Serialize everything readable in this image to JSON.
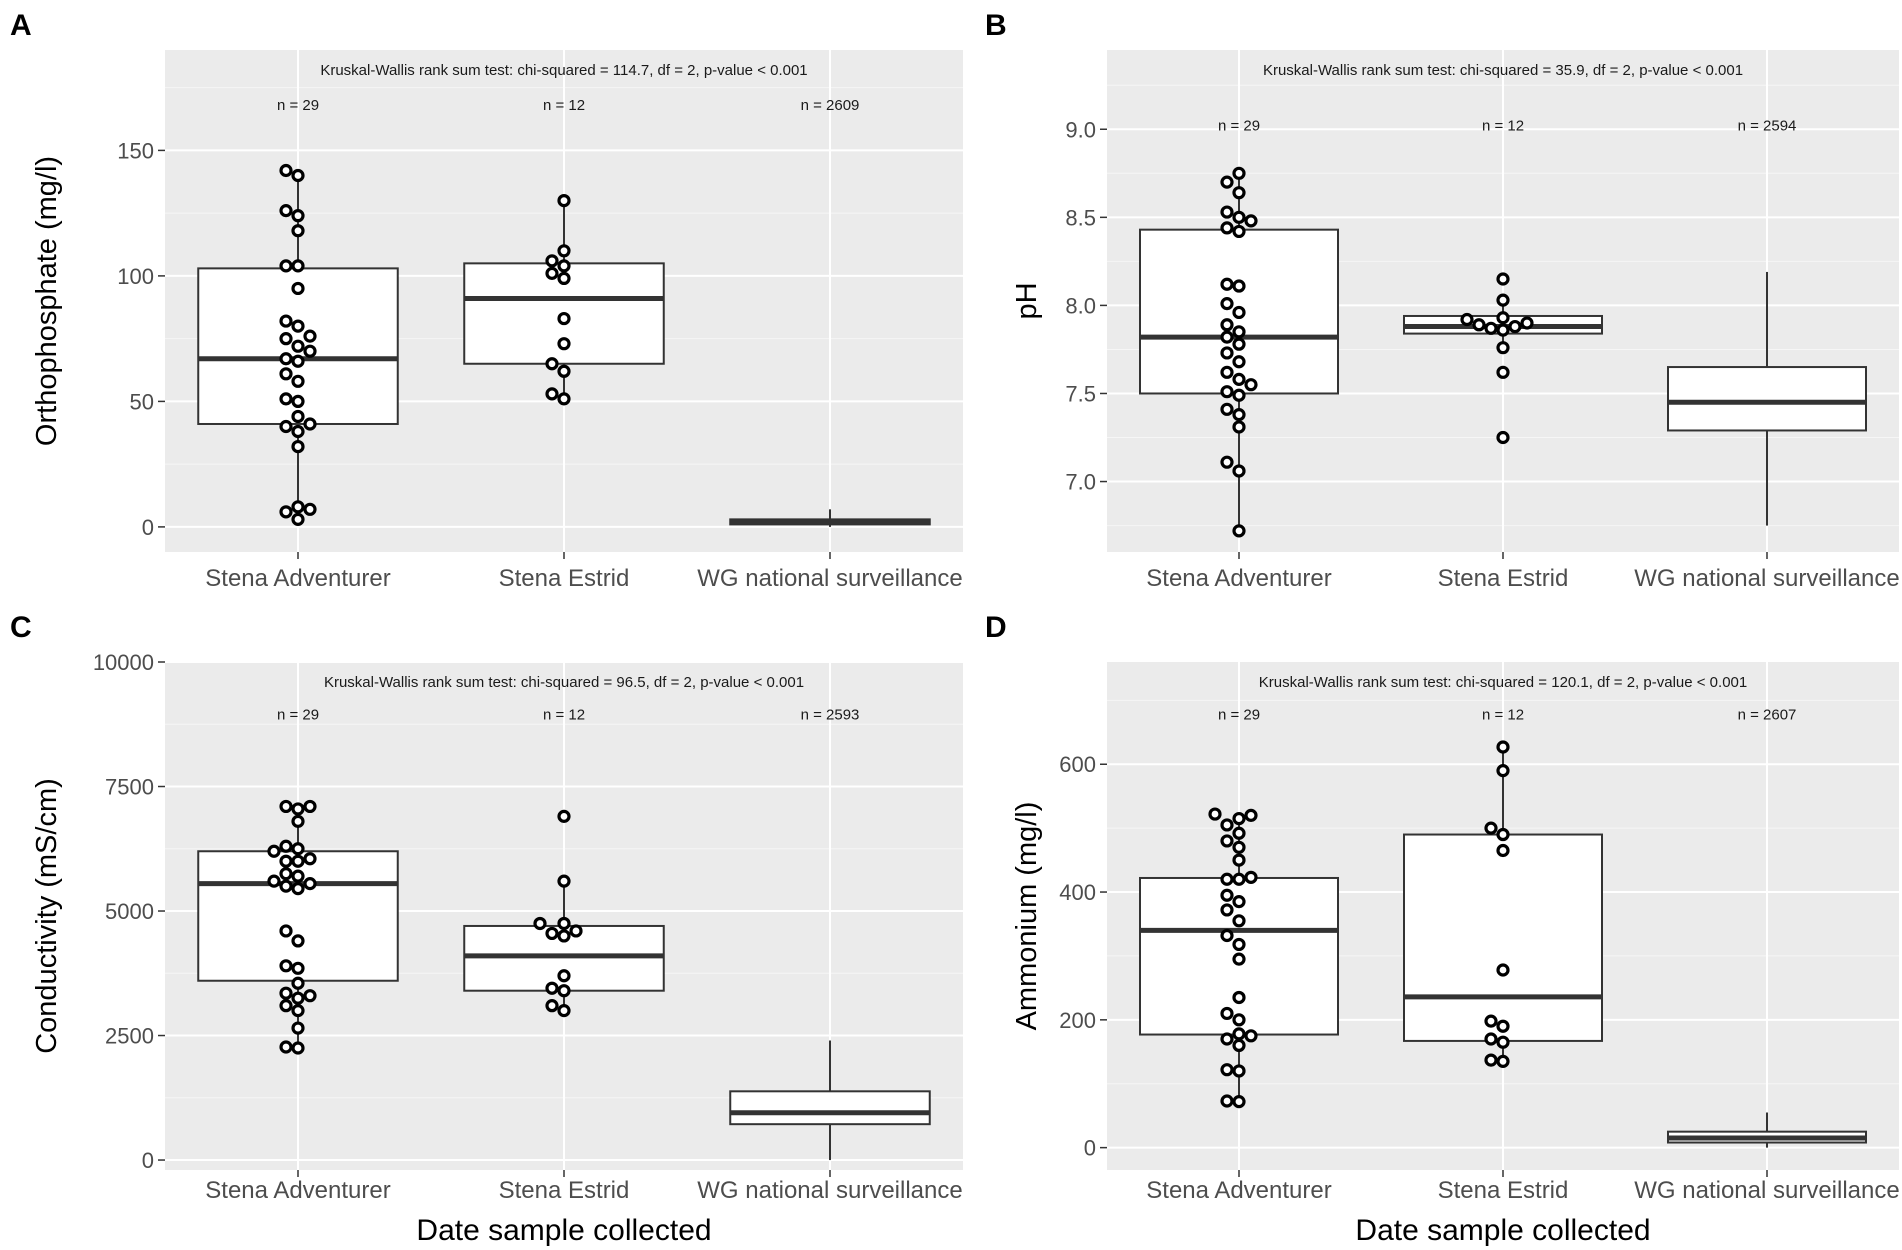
{
  "chart_data": [
    {
      "panel": "A",
      "type": "box",
      "ylabel": "Orthophosphate (mg/l)",
      "xlabel": "",
      "ylim": [
        -10,
        190
      ],
      "yticks": [
        0,
        50,
        100,
        150
      ],
      "categories": [
        "Stena Adventurer",
        "Stena Estrid",
        "WG national surveillance"
      ],
      "annotation": "Kruskal-Wallis rank sum test: chi-squared = 114.7, df = 2, p-value < 0.001",
      "n_labels": [
        "n = 29",
        "n = 12",
        "n = 2609"
      ],
      "n_label_y": 168,
      "boxes": [
        {
          "q1": 41,
          "median": 67,
          "q3": 103,
          "whisker_low": 3,
          "whisker_high": 140
        },
        {
          "q1": 65,
          "median": 91,
          "q3": 105,
          "whisker_low": 51,
          "whisker_high": 130
        },
        {
          "q1": 1,
          "median": 2,
          "q3": 3,
          "whisker_low": 0,
          "whisker_high": 7
        }
      ],
      "points": [
        [
          3,
          6,
          7,
          8,
          32,
          38,
          40,
          41,
          44,
          50,
          51,
          58,
          61,
          66,
          67,
          70,
          72,
          75,
          76,
          80,
          82,
          95,
          104,
          104,
          118,
          124,
          126,
          140,
          142
        ],
        [
          51,
          53,
          62,
          65,
          73,
          83,
          99,
          101,
          104,
          106,
          110,
          130
        ],
        []
      ]
    },
    {
      "panel": "B",
      "type": "box",
      "ylabel": "pH",
      "xlabel": "",
      "ylim": [
        6.6,
        9.45
      ],
      "yticks": [
        7.0,
        7.5,
        8.0,
        8.5,
        9.0
      ],
      "ytick_labels": [
        "7.0",
        "7.5",
        "8.0",
        "8.5",
        "9.0"
      ],
      "categories": [
        "Stena Adventurer",
        "Stena Estrid",
        "WG national surveillance"
      ],
      "annotation": "Kruskal-Wallis rank sum test: chi-squared = 35.9, df = 2, p-value < 0.001",
      "n_labels": [
        "n = 29",
        "n = 12",
        "n = 2594"
      ],
      "n_label_y": 9.02,
      "boxes": [
        {
          "q1": 7.5,
          "median": 7.82,
          "q3": 8.43,
          "whisker_low": 6.72,
          "whisker_high": 8.75
        },
        {
          "q1": 7.84,
          "median": 7.88,
          "q3": 7.94,
          "whisker_low": 7.75,
          "whisker_high": 8.03
        },
        {
          "q1": 7.29,
          "median": 7.45,
          "q3": 7.65,
          "whisker_low": 6.75,
          "whisker_high": 8.19
        }
      ],
      "points": [
        [
          6.72,
          7.06,
          7.11,
          7.31,
          7.38,
          7.41,
          7.49,
          7.51,
          7.55,
          7.58,
          7.62,
          7.68,
          7.73,
          7.78,
          7.82,
          7.85,
          7.89,
          7.96,
          8.01,
          8.11,
          8.12,
          8.42,
          8.44,
          8.48,
          8.5,
          8.53,
          8.64,
          8.7,
          8.75
        ],
        [
          7.25,
          7.62,
          7.76,
          7.86,
          7.87,
          7.88,
          7.89,
          7.9,
          7.92,
          7.93,
          8.03,
          8.15
        ],
        []
      ]
    },
    {
      "panel": "C",
      "type": "box",
      "ylabel": "Conductivity (mS/cm)",
      "xlabel": "Date sample collected",
      "ylim": [
        -200,
        10000
      ],
      "yticks": [
        0,
        2500,
        5000,
        7500,
        10000
      ],
      "categories": [
        "Stena Adventurer",
        "Stena Estrid",
        "WG national surveillance"
      ],
      "annotation": "Kruskal-Wallis rank sum test: chi-squared = 96.5, df = 2, p-value < 0.001",
      "n_labels": [
        "n = 29",
        "n = 12",
        "n = 2593"
      ],
      "n_label_y": 8950,
      "boxes": [
        {
          "q1": 3600,
          "median": 5550,
          "q3": 6200,
          "whisker_low": 2250,
          "whisker_high": 7050
        },
        {
          "q1": 3400,
          "median": 4100,
          "q3": 4700,
          "whisker_low": 3000,
          "whisker_high": 5600
        },
        {
          "q1": 720,
          "median": 950,
          "q3": 1380,
          "whisker_low": 0,
          "whisker_high": 2400
        }
      ],
      "points": [
        [
          2250,
          2270,
          2650,
          3000,
          3100,
          3250,
          3300,
          3350,
          3550,
          3850,
          3900,
          4400,
          4600,
          5450,
          5500,
          5550,
          5600,
          5700,
          5750,
          6000,
          6000,
          6050,
          6200,
          6250,
          6300,
          6800,
          7050,
          7100,
          7100
        ],
        [
          3000,
          3100,
          3400,
          3450,
          3700,
          4500,
          4550,
          4600,
          4750,
          4750,
          5600,
          6900
        ],
        []
      ]
    },
    {
      "panel": "D",
      "type": "box",
      "ylabel": "Ammonium (mg/l)",
      "xlabel": "Date sample collected",
      "ylim": [
        -35,
        760
      ],
      "yticks": [
        0,
        200,
        400,
        600
      ],
      "categories": [
        "Stena Adventurer",
        "Stena Estrid",
        "WG national surveillance"
      ],
      "annotation": "Kruskal-Wallis rank sum test: chi-squared = 120.1, df = 2, p-value < 0.001",
      "n_labels": [
        "n = 29",
        "n = 12",
        "n = 2607"
      ],
      "n_label_y": 678,
      "boxes": [
        {
          "q1": 177,
          "median": 340,
          "q3": 422,
          "whisker_low": 72,
          "whisker_high": 522
        },
        {
          "q1": 167,
          "median": 236,
          "q3": 490,
          "whisker_low": 135,
          "whisker_high": 625
        },
        {
          "q1": 8,
          "median": 15,
          "q3": 25,
          "whisker_low": 0,
          "whisker_high": 55
        }
      ],
      "points": [
        [
          72,
          73,
          120,
          122,
          160,
          170,
          175,
          178,
          200,
          210,
          235,
          295,
          318,
          332,
          355,
          372,
          385,
          395,
          420,
          420,
          423,
          450,
          470,
          480,
          492,
          505,
          515,
          520,
          522
        ],
        [
          135,
          137,
          165,
          170,
          190,
          198,
          278,
          465,
          490,
          500,
          590,
          627
        ],
        []
      ]
    }
  ]
}
